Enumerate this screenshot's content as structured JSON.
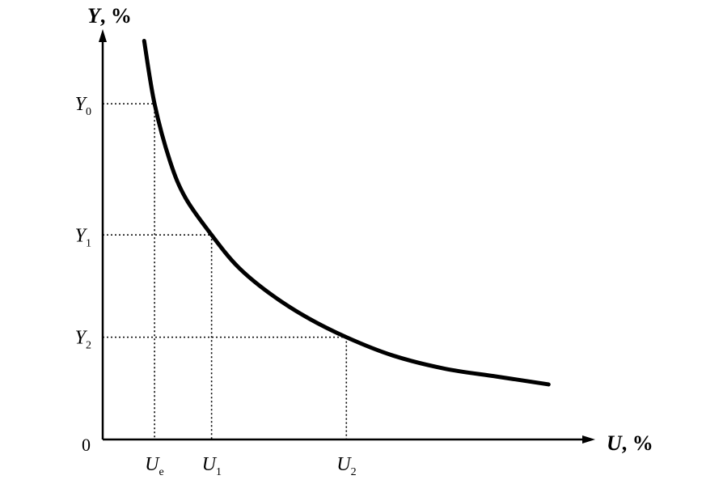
{
  "chart_data": {
    "type": "line",
    "xlabel": {
      "symbol": "U",
      "unit": ", %"
    },
    "ylabel": {
      "symbol": "Y",
      "unit": ", %"
    },
    "origin_label": "0",
    "x_ticks": [
      {
        "main": "U",
        "sub": "e",
        "value": 1.0
      },
      {
        "main": "U",
        "sub": "1",
        "value": 2.1
      },
      {
        "main": "U",
        "sub": "2",
        "value": 4.7
      }
    ],
    "y_ticks": [
      {
        "main": "Y",
        "sub": "0",
        "value": 6.4
      },
      {
        "main": "Y",
        "sub": "2",
        "value": 1.95
      },
      {
        "main": "Y",
        "sub": "1",
        "value": 3.9
      }
    ],
    "xlim": [
      0,
      9.5
    ],
    "ylim": [
      0,
      7.7
    ],
    "series": [
      {
        "x": [
          0.8,
          1.0,
          1.3,
          1.6,
          2.1,
          2.6,
          3.2,
          3.9,
          4.7,
          5.6,
          6.6,
          7.6,
          8.6
        ],
        "y": [
          7.6,
          6.4,
          5.3,
          4.6,
          3.9,
          3.3,
          2.8,
          2.35,
          1.95,
          1.6,
          1.35,
          1.2,
          1.05
        ],
        "color": "#000000"
      }
    ],
    "reference_lines": "dotted from each curve point to both axes",
    "grid": false,
    "legend": "none"
  }
}
